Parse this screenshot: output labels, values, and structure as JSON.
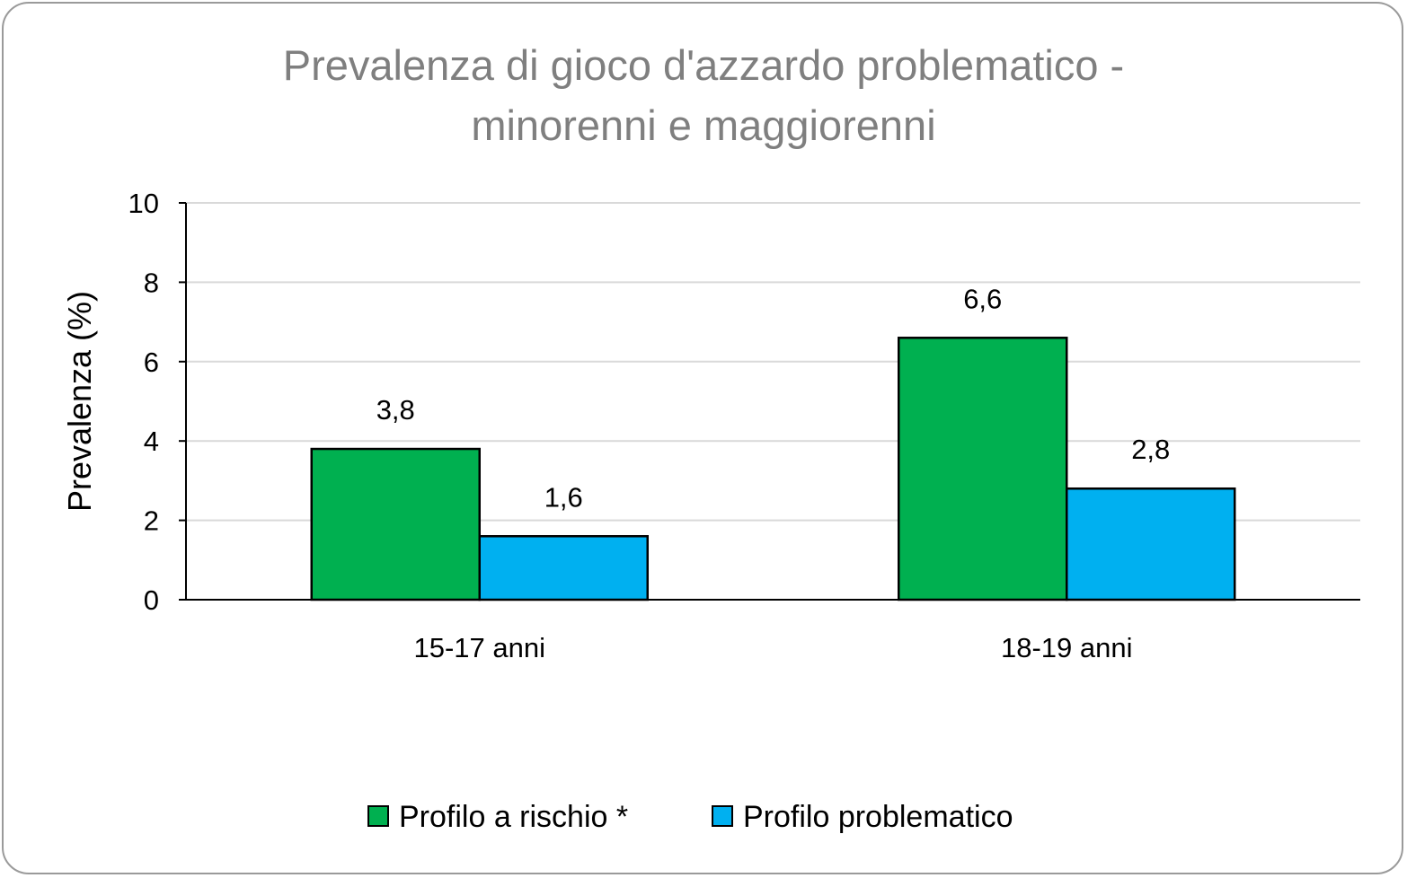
{
  "chart_data": {
    "type": "bar",
    "title_line1": "Prevalenza di gioco d'azzardo problematico -",
    "title_line2": "minorenni e maggiorenni",
    "ylabel": "Prevalenza (%)",
    "xlabel": "",
    "ylim": [
      0,
      10
    ],
    "yticks": [
      0,
      2,
      4,
      6,
      8,
      10
    ],
    "grid": true,
    "legend_position": "bottom",
    "categories": [
      "15-17 anni",
      "18-19 anni"
    ],
    "series": [
      {
        "name": "Profilo a rischio *",
        "color": "#00b050",
        "values": [
          3.8,
          6.6
        ],
        "labels": [
          "3,8",
          "6,6"
        ]
      },
      {
        "name": "Profilo problematico",
        "color": "#00b0f0",
        "values": [
          1.6,
          2.8
        ],
        "labels": [
          "1,6",
          "2,8"
        ]
      }
    ]
  }
}
